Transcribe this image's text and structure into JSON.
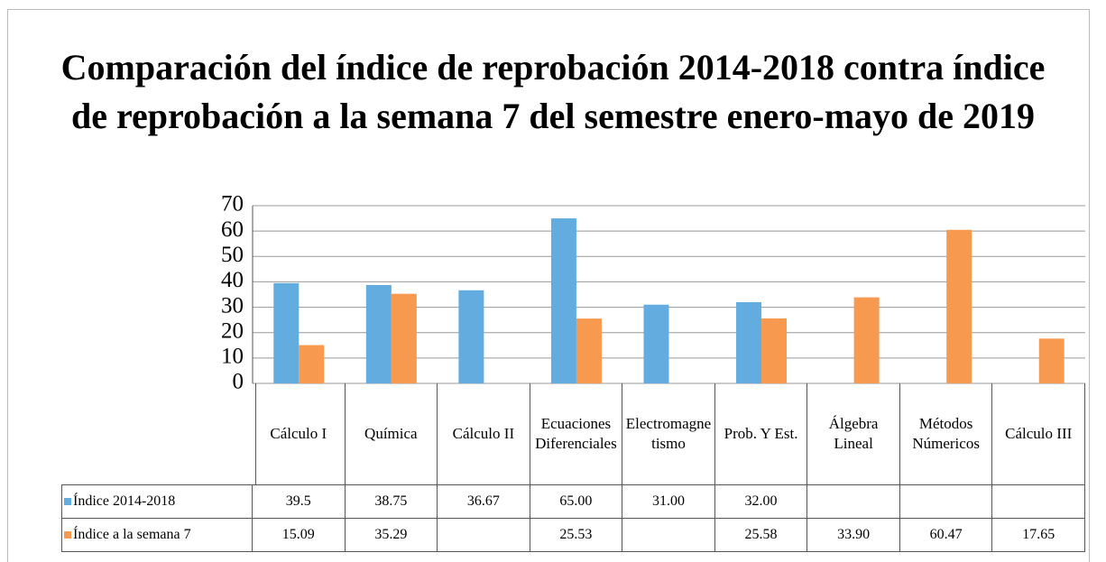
{
  "chart_data": {
    "type": "bar",
    "title": "Comparación del índice de reprobación 2014-2018 contra índice de reprobación a la semana 7 del semestre enero-mayo de 2019",
    "categories": [
      "Cálculo I",
      "Química",
      "Cálculo II",
      "Ecuaciones Diferenciales",
      "Electromagnetismo",
      "Prob. Y Est.",
      "Álgebra Lineal",
      "Métodos Númericos",
      "Cálculo III"
    ],
    "series": [
      {
        "name": "Índice 2014-2018",
        "color": "#62ace0",
        "values": [
          39.5,
          38.75,
          36.67,
          65.0,
          31.0,
          32.0,
          null,
          null,
          null
        ],
        "value_labels": [
          "39.5",
          "38.75",
          "36.67",
          "65.00",
          "31.00",
          "32.00",
          null,
          null,
          null
        ]
      },
      {
        "name": "Índice a la semana 7",
        "color": "#f79a50",
        "values": [
          15.09,
          35.29,
          null,
          25.53,
          null,
          25.58,
          33.9,
          60.47,
          17.65
        ],
        "value_labels": [
          "15.09",
          "35.29",
          null,
          "25.53",
          null,
          "25.58",
          "33.90",
          "60.47",
          "17.65"
        ]
      }
    ],
    "ylim": [
      0,
      70
    ],
    "yticks": [
      0,
      10,
      20,
      30,
      40,
      50,
      60,
      70
    ],
    "grid": true
  }
}
